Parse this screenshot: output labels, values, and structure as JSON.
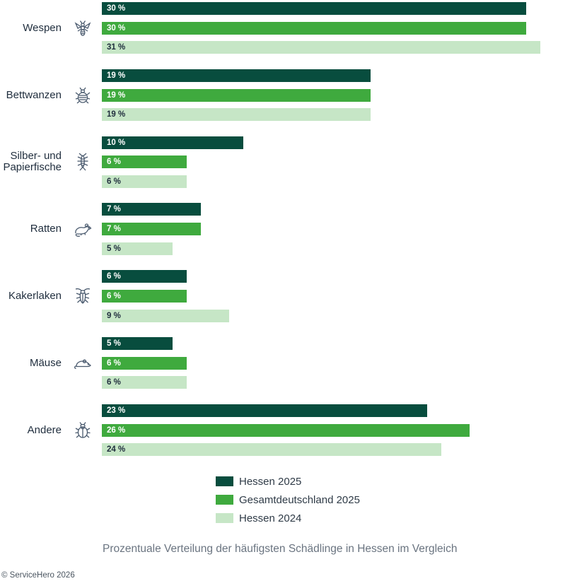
{
  "colors": {
    "series_hessen_2025": "#084d3e",
    "series_gesamt_2025": "#3faa3e",
    "series_hessen_2024": "#c6e6c6",
    "label_light": "#ffffff",
    "label_dark": "#1f2d3d",
    "icon": "#4a5a6e"
  },
  "chart_data": {
    "type": "bar",
    "orientation": "horizontal",
    "title": "",
    "xlabel": "",
    "ylabel": "",
    "xlim": [
      0,
      31
    ],
    "grid": false,
    "legend_position": "bottom",
    "categories": [
      {
        "label": "Wespen",
        "icon": "wasp-icon"
      },
      {
        "label": "Bettwanzen",
        "icon": "bedbug-icon"
      },
      {
        "label": "Silber- und Papierfische",
        "icon": "silverfish-icon"
      },
      {
        "label": "Ratten",
        "icon": "rat-icon"
      },
      {
        "label": "Kakerlaken",
        "icon": "cockroach-icon"
      },
      {
        "label": "Mäuse",
        "icon": "mouse-icon"
      },
      {
        "label": "Andere",
        "icon": "beetle-icon"
      }
    ],
    "series": [
      {
        "name": "Hessen 2025",
        "values": [
          30,
          19,
          10,
          7,
          6,
          5,
          23
        ],
        "labels": [
          "30 %",
          "19 %",
          "10 %",
          "7 %",
          "6 %",
          "5 %",
          "23 %"
        ]
      },
      {
        "name": "Gesamtdeutschland 2025",
        "values": [
          30,
          19,
          6,
          7,
          6,
          6,
          26
        ],
        "labels": [
          "30 %",
          "19 %",
          "6 %",
          "7 %",
          "6 %",
          "6 %",
          "26 %"
        ]
      },
      {
        "name": "Hessen 2024",
        "values": [
          31,
          19,
          6,
          5,
          9,
          6,
          24
        ],
        "labels": [
          "31 %",
          "19 %",
          "6 %",
          "5 %",
          "9 %",
          "6 %",
          "24  %"
        ]
      }
    ]
  },
  "caption": "Prozentuale Verteilung der häufigsten Schädlinge in Hessen im Vergleich",
  "copyright": "© ServiceHero 2026"
}
